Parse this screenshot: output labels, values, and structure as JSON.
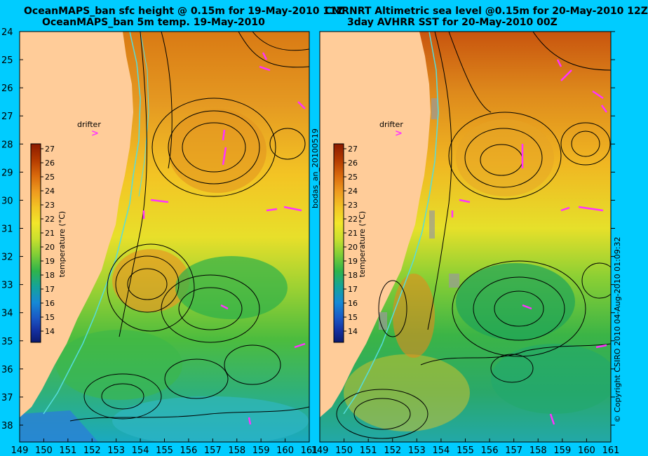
{
  "left_panel": {
    "title_line1": "OceanMAPS_ban sfc height @ 0.15m for 19-May-2010 11Z",
    "title_line2": "OceanMAPS_ban 5m temp. 19-May-2010"
  },
  "right_panel": {
    "title_line1": "CMRNRT Altimetric sea level  @0.15m  for 20-May-2010 12Z",
    "title_line2": "3day AVHRR SST for 20-May-2010 00Z"
  },
  "drifter_label": "drifter",
  "drifter_marker": ">",
  "side_label_left": "bodas_an_20100519",
  "side_label_right": "© Copyright CSIRO 2010    04-Aug-2010 01:09:32",
  "colorbar": {
    "label": "temperature (°C)",
    "ticks": [
      "27",
      "26",
      "25",
      "24",
      "23",
      "22",
      "21",
      "20",
      "19",
      "18",
      "17",
      "16",
      "15",
      "14"
    ],
    "colors": [
      "#8b1a00",
      "#b33a00",
      "#d9690c",
      "#ee9a1f",
      "#f3c424",
      "#f2e62a",
      "#c9e02e",
      "#7fcd36",
      "#2fb44a",
      "#15a39a",
      "#1689d6",
      "#1a56c4",
      "#1430a0",
      "#0c1a6e"
    ]
  },
  "y_axis_ticks": [
    "24",
    "25",
    "26",
    "27",
    "28",
    "29",
    "30",
    "31",
    "32",
    "33",
    "34",
    "35",
    "36",
    "37",
    "38"
  ],
  "x_axis_ticks": [
    "149",
    "150",
    "151",
    "152",
    "153",
    "154",
    "155",
    "156",
    "157",
    "158",
    "159",
    "160",
    "161"
  ],
  "colors": {
    "background": "#00ccff",
    "land": "#ffcc99",
    "contour": "#000000",
    "isobath": "#55dddd",
    "arrows": "#ff33ff"
  }
}
